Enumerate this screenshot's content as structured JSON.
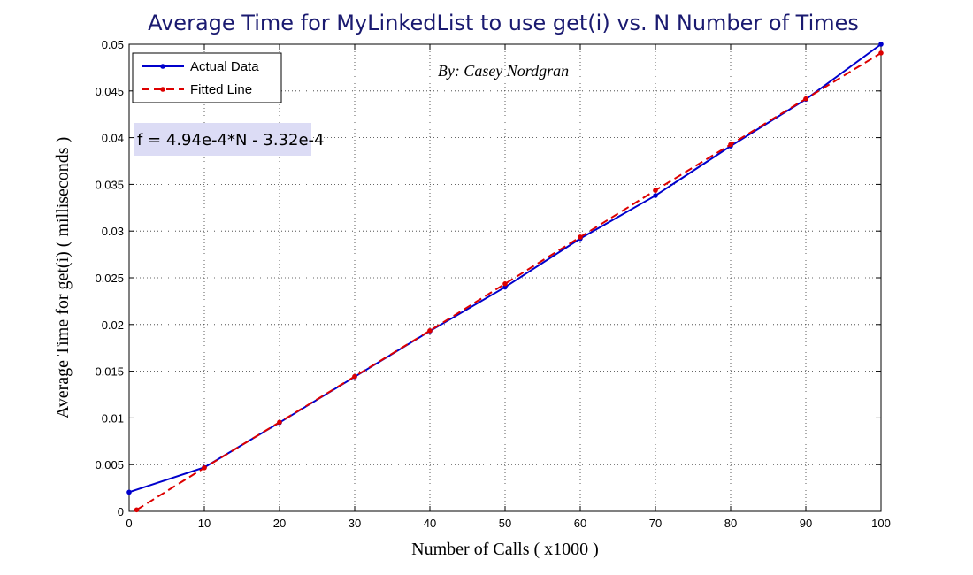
{
  "chart_data": {
    "type": "line",
    "title": "Average Time for MyLinkedList to use get(i)  vs.  N Number of Times",
    "xlabel": "Number of Calls ( x1000 )",
    "ylabel": "Average Time for get(i) ( milliseconds )",
    "annotation_author": "By: Casey Nordgran",
    "annotation_equation": "f = 4.94e-4*N - 3.32e-4",
    "xlim": [
      0,
      100
    ],
    "ylim": [
      0,
      0.05
    ],
    "xticks": [
      0,
      10,
      20,
      30,
      40,
      50,
      60,
      70,
      80,
      90,
      100
    ],
    "xtick_labels": [
      "0",
      "10",
      "20",
      "30",
      "40",
      "50",
      "60",
      "70",
      "80",
      "90",
      "100"
    ],
    "yticks": [
      0,
      0.005,
      0.01,
      0.015,
      0.02,
      0.025,
      0.03,
      0.035,
      0.04,
      0.045,
      0.05
    ],
    "ytick_labels": [
      "0",
      "0.005",
      "0.01",
      "0.015",
      "0.02",
      "0.025",
      "0.03",
      "0.035",
      "0.04",
      "0.045",
      "0.05"
    ],
    "grid": true,
    "legend_position": "top-left",
    "series": [
      {
        "name": "Actual Data",
        "color": "#0000cc",
        "line_style": "solid",
        "x": [
          0,
          10,
          20,
          30,
          40,
          50,
          60,
          70,
          80,
          90,
          100
        ],
        "y": [
          0.00205,
          0.0047,
          0.0095,
          0.0144,
          0.0193,
          0.024,
          0.0292,
          0.0338,
          0.0391,
          0.0441,
          0.05
        ]
      },
      {
        "name": "Fitted Line",
        "color": "#dd0000",
        "line_style": "dashed",
        "x": [
          1,
          10,
          20,
          30,
          40,
          50,
          60,
          70,
          80,
          90,
          100
        ],
        "y": [
          0.00016,
          0.00466,
          0.00954,
          0.01444,
          0.01934,
          0.02436,
          0.02936,
          0.03436,
          0.03926,
          0.04416,
          0.04906
        ]
      }
    ]
  }
}
